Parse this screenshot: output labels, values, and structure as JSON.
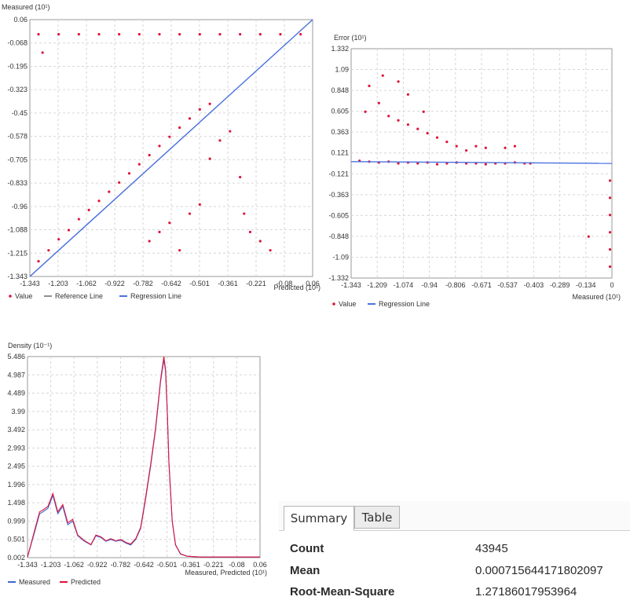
{
  "colors": {
    "value": "#dc143c",
    "measured": "#3f66d4",
    "reference": "#8f8f8f",
    "regression": "#4a72e0",
    "grid": "#d6d6d6"
  },
  "chart_data": [
    {
      "type": "scatter",
      "name": "predicted-vs-measured",
      "ylabel": "Measured (10¹)",
      "xlabel": "Predicted (10¹)",
      "x_ticks": [
        "-1.343",
        "-1.203",
        "-1.062",
        "-0.922",
        "-0.782",
        "-0.642",
        "-0.501",
        "-0.361",
        "-0.221",
        "-0.08",
        "0.06"
      ],
      "y_ticks": [
        "0.06",
        "-0.068",
        "-0.195",
        "-0.323",
        "-0.45",
        "-0.578",
        "-0.705",
        "-0.833",
        "-0.96",
        "-1.088",
        "-1.215",
        "-1.343"
      ],
      "xlim": [
        -1.343,
        0.06
      ],
      "ylim": [
        -1.343,
        0.06
      ],
      "grid": true,
      "legend_position": "bottom-left",
      "legend": [
        "Value",
        "Reference Line",
        "Regression Line"
      ],
      "regression_line": [
        [
          -1.343,
          -1.343
        ],
        [
          0.06,
          0.06
        ]
      ],
      "reference_line": [
        [
          -1.343,
          -1.343
        ],
        [
          -0.4,
          -0.4
        ]
      ],
      "points": [
        [
          -1.3,
          -0.02
        ],
        [
          -1.2,
          -0.02
        ],
        [
          -1.1,
          -0.02
        ],
        [
          -1.0,
          -0.02
        ],
        [
          -0.9,
          -0.02
        ],
        [
          -0.8,
          -0.02
        ],
        [
          -0.7,
          -0.02
        ],
        [
          -0.6,
          -0.02
        ],
        [
          -0.5,
          -0.02
        ],
        [
          -0.4,
          -0.02
        ],
        [
          -0.3,
          -0.02
        ],
        [
          -0.2,
          -0.02
        ],
        [
          -0.1,
          -0.02
        ],
        [
          0.0,
          -0.02
        ],
        [
          -1.28,
          -0.12
        ],
        [
          -1.3,
          -1.26
        ],
        [
          -1.25,
          -1.2
        ],
        [
          -1.2,
          -1.14
        ],
        [
          -1.15,
          -1.09
        ],
        [
          -1.1,
          -1.03
        ],
        [
          -1.05,
          -0.98
        ],
        [
          -1.0,
          -0.93
        ],
        [
          -0.95,
          -0.88
        ],
        [
          -0.9,
          -0.83
        ],
        [
          -0.85,
          -0.78
        ],
        [
          -0.8,
          -0.73
        ],
        [
          -0.75,
          -0.68
        ],
        [
          -0.7,
          -0.63
        ],
        [
          -0.65,
          -0.58
        ],
        [
          -0.6,
          -0.53
        ],
        [
          -0.55,
          -0.48
        ],
        [
          -0.5,
          -0.43
        ],
        [
          -0.45,
          -0.4
        ],
        [
          -0.75,
          -1.15
        ],
        [
          -0.7,
          -1.1
        ],
        [
          -0.65,
          -1.05
        ],
        [
          -0.6,
          -1.2
        ],
        [
          -0.55,
          -1.0
        ],
        [
          -0.5,
          -0.95
        ],
        [
          -0.45,
          -0.7
        ],
        [
          -0.4,
          -0.6
        ],
        [
          -0.35,
          -0.55
        ],
        [
          -0.3,
          -0.8
        ],
        [
          -0.25,
          -1.1
        ],
        [
          -0.2,
          -1.15
        ],
        [
          -0.15,
          -1.2
        ],
        [
          -0.28,
          -1.0
        ]
      ]
    },
    {
      "type": "scatter",
      "name": "measured-vs-error",
      "ylabel": "Error (10¹)",
      "xlabel": "Measured (10¹)",
      "x_ticks": [
        "-1.343",
        "-1.209",
        "-1.074",
        "-0.94",
        "-0.806",
        "-0.671",
        "-0.537",
        "-0.403",
        "-0.289",
        "-0.134",
        "0"
      ],
      "y_ticks": [
        "1.332",
        "1.09",
        "0.848",
        "0.605",
        "0.363",
        "0.121",
        "-0.121",
        "-0.363",
        "-0.605",
        "-0.848",
        "-1.09",
        "-1.332"
      ],
      "xlim": [
        -1.343,
        0.0
      ],
      "ylim": [
        -1.332,
        1.332
      ],
      "grid": true,
      "legend_position": "bottom-left",
      "legend": [
        "Value",
        "Regression Line"
      ],
      "regression_line": [
        [
          -1.343,
          0.02
        ],
        [
          0.0,
          0.0
        ]
      ],
      "points": [
        [
          -1.3,
          0.03
        ],
        [
          -1.25,
          0.02
        ],
        [
          -1.2,
          0.01
        ],
        [
          -1.15,
          0.02
        ],
        [
          -1.1,
          0.0
        ],
        [
          -1.05,
          0.01
        ],
        [
          -1.0,
          0.0
        ],
        [
          -0.95,
          0.01
        ],
        [
          -0.9,
          -0.01
        ],
        [
          -0.85,
          0.0
        ],
        [
          -0.8,
          0.01
        ],
        [
          -0.75,
          0.0
        ],
        [
          -0.7,
          0.0
        ],
        [
          -0.65,
          -0.01
        ],
        [
          -0.6,
          0.0
        ],
        [
          -0.55,
          0.0
        ],
        [
          -0.5,
          0.01
        ],
        [
          -0.45,
          0.0
        ],
        [
          -0.42,
          0.0
        ],
        [
          -1.25,
          0.9
        ],
        [
          -1.2,
          0.7
        ],
        [
          -1.15,
          0.55
        ],
        [
          -1.1,
          0.5
        ],
        [
          -1.05,
          0.45
        ],
        [
          -1.0,
          0.4
        ],
        [
          -0.95,
          0.35
        ],
        [
          -0.9,
          0.3
        ],
        [
          -0.85,
          0.25
        ],
        [
          -0.8,
          0.2
        ],
        [
          -0.75,
          0.15
        ],
        [
          -0.7,
          0.2
        ],
        [
          -0.65,
          0.18
        ],
        [
          -0.55,
          0.18
        ],
        [
          -0.5,
          0.2
        ],
        [
          -1.27,
          0.6
        ],
        [
          -1.18,
          1.02
        ],
        [
          -1.1,
          0.95
        ],
        [
          -1.05,
          0.8
        ],
        [
          -0.97,
          0.6
        ],
        [
          -0.12,
          -0.85
        ],
        [
          -0.01,
          -0.2
        ],
        [
          -0.01,
          -0.4
        ],
        [
          -0.01,
          -0.6
        ],
        [
          -0.01,
          -0.8
        ],
        [
          -0.01,
          -1.0
        ],
        [
          -0.01,
          -1.2
        ]
      ]
    },
    {
      "type": "line",
      "name": "density",
      "ylabel": "Density (10⁻¹)",
      "xlabel": "Measured, Predicted (10¹)",
      "x_ticks": [
        "-1.343",
        "-1.203",
        "-1.062",
        "-0.922",
        "-0.782",
        "-0.642",
        "-0.501",
        "-0.361",
        "-0.221",
        "-0.08",
        "0.06"
      ],
      "y_ticks": [
        "5.486",
        "4.987",
        "4.489",
        "3.99",
        "3.492",
        "2.993",
        "2.495",
        "1.996",
        "1.498",
        "0.999",
        "0.501",
        "0.002"
      ],
      "xlim": [
        -1.343,
        0.06
      ],
      "ylim": [
        0.002,
        5.486
      ],
      "grid": true,
      "legend_position": "bottom-left",
      "x": [
        -1.343,
        -1.3,
        -1.27,
        -1.25,
        -1.22,
        -1.19,
        -1.16,
        -1.13,
        -1.1,
        -1.07,
        -1.04,
        -1.0,
        -0.96,
        -0.93,
        -0.9,
        -0.87,
        -0.84,
        -0.81,
        -0.78,
        -0.75,
        -0.72,
        -0.69,
        -0.66,
        -0.63,
        -0.6,
        -0.57,
        -0.54,
        -0.52,
        -0.51,
        -0.5,
        -0.49,
        -0.47,
        -0.45,
        -0.42,
        -0.38,
        -0.3,
        -0.2,
        -0.1,
        0.0,
        0.06
      ],
      "series": [
        {
          "name": "Measured",
          "values": [
            0.02,
            0.7,
            1.2,
            1.25,
            1.35,
            1.7,
            1.2,
            1.4,
            0.9,
            1.0,
            0.6,
            0.45,
            0.35,
            0.6,
            0.55,
            0.45,
            0.5,
            0.45,
            0.48,
            0.4,
            0.35,
            0.5,
            0.8,
            1.6,
            2.5,
            3.5,
            4.8,
            5.4,
            5.1,
            4.0,
            2.6,
            1.0,
            0.35,
            0.1,
            0.04,
            0.02,
            0.02,
            0.02,
            0.02,
            0.02
          ]
        },
        {
          "name": "Predicted",
          "values": [
            0.02,
            0.75,
            1.25,
            1.3,
            1.4,
            1.75,
            1.25,
            1.45,
            0.95,
            1.05,
            0.62,
            0.47,
            0.36,
            0.62,
            0.57,
            0.46,
            0.52,
            0.46,
            0.5,
            0.42,
            0.37,
            0.52,
            0.83,
            1.65,
            2.55,
            3.55,
            4.85,
            5.486,
            5.15,
            4.05,
            2.62,
            1.02,
            0.36,
            0.11,
            0.04,
            0.02,
            0.02,
            0.02,
            0.02,
            0.02
          ]
        }
      ]
    }
  ],
  "stats": {
    "tabs": [
      "Summary",
      "Table"
    ],
    "rows": [
      {
        "label": "Count",
        "value": "43945"
      },
      {
        "label": "Mean",
        "value": "0.000715644171802097"
      },
      {
        "label": "Root-Mean-Square",
        "value": "1.27186017953964"
      }
    ]
  }
}
